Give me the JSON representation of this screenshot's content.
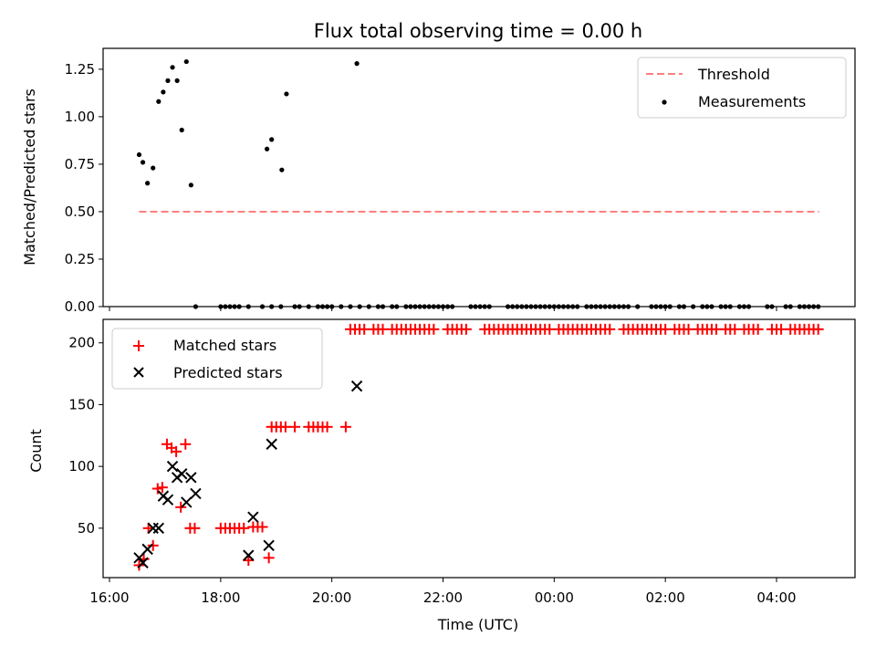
{
  "chart_data": [
    {
      "type": "scatter",
      "title": "Flux total observing time = 0.00 h",
      "ylabel": "Matched/Predicted stars",
      "ylim": [
        0,
        1.36
      ],
      "yticks": [
        "0.00",
        "0.25",
        "0.50",
        "0.75",
        "1.00",
        "1.25"
      ],
      "legend": {
        "placement": "top-right",
        "entries": [
          "Threshold",
          "Measurements"
        ]
      },
      "colors": {
        "threshold": "#ff7f7f",
        "measurements": "#000000"
      },
      "series": [
        {
          "name": "Threshold",
          "kind": "dashed-line",
          "points": [
            [
              "16:32",
              0.5
            ],
            [
              "04:46",
              0.5
            ]
          ]
        },
        {
          "name": "Measurements",
          "kind": "dot",
          "points": [
            [
              "16:32",
              0.8
            ],
            [
              "16:36",
              0.76
            ],
            [
              "16:41",
              0.65
            ],
            [
              "16:47",
              0.73
            ],
            [
              "16:53",
              1.08
            ],
            [
              "16:58",
              1.13
            ],
            [
              "17:03",
              1.19
            ],
            [
              "17:08",
              1.26
            ],
            [
              "17:13",
              1.19
            ],
            [
              "17:18",
              0.93
            ],
            [
              "17:23",
              1.29
            ],
            [
              "17:28",
              0.64
            ],
            [
              "18:50",
              0.83
            ],
            [
              "18:55",
              0.88
            ],
            [
              "19:06",
              0.72
            ],
            [
              "19:11",
              1.12
            ],
            [
              "20:27",
              1.28
            ],
            [
              "17:33",
              0
            ],
            [
              "18:00",
              0
            ],
            [
              "18:05",
              0
            ],
            [
              "18:10",
              0
            ],
            [
              "18:15",
              0
            ],
            [
              "18:20",
              0
            ],
            [
              "18:30",
              0
            ],
            [
              "18:45",
              0
            ],
            [
              "18:55",
              0
            ],
            [
              "19:05",
              0
            ],
            [
              "19:20",
              0
            ],
            [
              "19:25",
              0
            ],
            [
              "19:35",
              0
            ],
            [
              "19:45",
              0
            ],
            [
              "19:50",
              0
            ],
            [
              "19:55",
              0
            ],
            [
              "20:00",
              0
            ],
            [
              "20:10",
              0
            ],
            [
              "20:20",
              0
            ],
            [
              "20:30",
              0
            ],
            [
              "20:40",
              0
            ],
            [
              "20:50",
              0
            ],
            [
              "20:55",
              0
            ],
            [
              "21:05",
              0
            ],
            [
              "21:10",
              0
            ],
            [
              "21:20",
              0
            ],
            [
              "21:25",
              0
            ],
            [
              "21:30",
              0
            ],
            [
              "21:35",
              0
            ],
            [
              "21:40",
              0
            ],
            [
              "21:45",
              0
            ],
            [
              "21:50",
              0
            ],
            [
              "21:55",
              0
            ],
            [
              "22:00",
              0
            ],
            [
              "22:05",
              0
            ],
            [
              "22:10",
              0
            ],
            [
              "22:30",
              0
            ],
            [
              "22:35",
              0
            ],
            [
              "22:40",
              0
            ],
            [
              "22:45",
              0
            ],
            [
              "22:50",
              0
            ],
            [
              "23:10",
              0
            ],
            [
              "23:15",
              0
            ],
            [
              "23:20",
              0
            ],
            [
              "23:25",
              0
            ],
            [
              "23:30",
              0
            ],
            [
              "23:35",
              0
            ],
            [
              "23:40",
              0
            ],
            [
              "23:45",
              0
            ],
            [
              "23:50",
              0
            ],
            [
              "23:55",
              0
            ],
            [
              "00:00",
              0
            ],
            [
              "00:05",
              0
            ],
            [
              "00:10",
              0
            ],
            [
              "00:15",
              0
            ],
            [
              "00:20",
              0
            ],
            [
              "00:25",
              0
            ],
            [
              "00:35",
              0
            ],
            [
              "00:40",
              0
            ],
            [
              "00:45",
              0
            ],
            [
              "00:50",
              0
            ],
            [
              "00:55",
              0
            ],
            [
              "01:00",
              0
            ],
            [
              "01:05",
              0
            ],
            [
              "01:10",
              0
            ],
            [
              "01:15",
              0
            ],
            [
              "01:20",
              0
            ],
            [
              "01:30",
              0
            ],
            [
              "01:45",
              0
            ],
            [
              "01:50",
              0
            ],
            [
              "01:55",
              0
            ],
            [
              "02:00",
              0
            ],
            [
              "02:05",
              0
            ],
            [
              "02:15",
              0
            ],
            [
              "02:20",
              0
            ],
            [
              "02:30",
              0
            ],
            [
              "02:40",
              0
            ],
            [
              "02:45",
              0
            ],
            [
              "02:50",
              0
            ],
            [
              "03:00",
              0
            ],
            [
              "03:05",
              0
            ],
            [
              "03:10",
              0
            ],
            [
              "03:20",
              0
            ],
            [
              "03:25",
              0
            ],
            [
              "03:30",
              0
            ],
            [
              "03:50",
              0
            ],
            [
              "03:55",
              0
            ],
            [
              "04:10",
              0
            ],
            [
              "04:15",
              0
            ],
            [
              "04:25",
              0
            ],
            [
              "04:30",
              0
            ],
            [
              "04:35",
              0
            ],
            [
              "04:40",
              0
            ],
            [
              "04:45",
              0
            ]
          ]
        }
      ]
    },
    {
      "type": "scatter",
      "xlabel": "Time (UTC)",
      "ylabel": "Count",
      "ylim": [
        10,
        219
      ],
      "yticks": [
        "50",
        "100",
        "150",
        "200"
      ],
      "xticks": [
        "16:00",
        "18:00",
        "20:00",
        "22:00",
        "00:00",
        "02:00",
        "04:00"
      ],
      "legend": {
        "placement": "top-left",
        "entries": [
          "Matched stars",
          "Predicted stars"
        ]
      },
      "colors": {
        "matched": "#ff0000",
        "predicted": "#000000"
      },
      "series": [
        {
          "name": "Matched stars",
          "kind": "plus",
          "points": [
            [
              "16:32",
              20
            ],
            [
              "16:37",
              25
            ],
            [
              "16:42",
              50
            ],
            [
              "16:47",
              36
            ],
            [
              "16:52",
              82
            ],
            [
              "16:57",
              83
            ],
            [
              "17:02",
              118
            ],
            [
              "17:07",
              115
            ],
            [
              "17:12",
              112
            ],
            [
              "17:17",
              67
            ],
            [
              "17:22",
              118
            ],
            [
              "17:27",
              50
            ],
            [
              "17:32",
              50
            ],
            [
              "18:00",
              50
            ],
            [
              "18:05",
              50
            ],
            [
              "18:10",
              50
            ],
            [
              "18:15",
              50
            ],
            [
              "18:20",
              50
            ],
            [
              "18:25",
              50
            ],
            [
              "18:30",
              24
            ],
            [
              "18:35",
              51
            ],
            [
              "18:40",
              51
            ],
            [
              "18:45",
              51
            ],
            [
              "18:52",
              26
            ],
            [
              "18:55",
              132
            ],
            [
              "19:00",
              132
            ],
            [
              "19:05",
              132
            ],
            [
              "19:10",
              132
            ],
            [
              "19:20",
              132
            ],
            [
              "19:35",
              132
            ],
            [
              "19:40",
              132
            ],
            [
              "19:45",
              132
            ],
            [
              "19:50",
              132
            ],
            [
              "19:55",
              132
            ],
            [
              "20:15",
              132
            ],
            [
              "20:20",
              211
            ],
            [
              "20:25",
              211
            ],
            [
              "20:30",
              211
            ],
            [
              "20:35",
              211
            ],
            [
              "20:45",
              211
            ],
            [
              "20:50",
              211
            ],
            [
              "20:55",
              211
            ],
            [
              "21:05",
              211
            ],
            [
              "21:10",
              211
            ],
            [
              "21:15",
              211
            ],
            [
              "21:20",
              211
            ],
            [
              "21:25",
              211
            ],
            [
              "21:30",
              211
            ],
            [
              "21:35",
              211
            ],
            [
              "21:40",
              211
            ],
            [
              "21:45",
              211
            ],
            [
              "21:50",
              211
            ],
            [
              "22:05",
              211
            ],
            [
              "22:10",
              211
            ],
            [
              "22:15",
              211
            ],
            [
              "22:20",
              211
            ],
            [
              "22:25",
              211
            ],
            [
              "22:45",
              211
            ],
            [
              "22:50",
              211
            ],
            [
              "22:55",
              211
            ],
            [
              "23:00",
              211
            ],
            [
              "23:05",
              211
            ],
            [
              "23:10",
              211
            ],
            [
              "23:15",
              211
            ],
            [
              "23:20",
              211
            ],
            [
              "23:25",
              211
            ],
            [
              "23:30",
              211
            ],
            [
              "23:35",
              211
            ],
            [
              "23:40",
              211
            ],
            [
              "23:45",
              211
            ],
            [
              "23:50",
              211
            ],
            [
              "23:55",
              211
            ],
            [
              "00:05",
              211
            ],
            [
              "00:10",
              211
            ],
            [
              "00:15",
              211
            ],
            [
              "00:20",
              211
            ],
            [
              "00:25",
              211
            ],
            [
              "00:30",
              211
            ],
            [
              "00:35",
              211
            ],
            [
              "00:40",
              211
            ],
            [
              "00:45",
              211
            ],
            [
              "00:50",
              211
            ],
            [
              "00:55",
              211
            ],
            [
              "01:00",
              211
            ],
            [
              "01:15",
              211
            ],
            [
              "01:20",
              211
            ],
            [
              "01:25",
              211
            ],
            [
              "01:30",
              211
            ],
            [
              "01:35",
              211
            ],
            [
              "01:40",
              211
            ],
            [
              "01:45",
              211
            ],
            [
              "01:50",
              211
            ],
            [
              "01:55",
              211
            ],
            [
              "02:00",
              211
            ],
            [
              "02:10",
              211
            ],
            [
              "02:15",
              211
            ],
            [
              "02:20",
              211
            ],
            [
              "02:25",
              211
            ],
            [
              "02:35",
              211
            ],
            [
              "02:40",
              211
            ],
            [
              "02:45",
              211
            ],
            [
              "02:50",
              211
            ],
            [
              "02:55",
              211
            ],
            [
              "03:05",
              211
            ],
            [
              "03:10",
              211
            ],
            [
              "03:15",
              211
            ],
            [
              "03:25",
              211
            ],
            [
              "03:30",
              211
            ],
            [
              "03:35",
              211
            ],
            [
              "03:40",
              211
            ],
            [
              "03:55",
              211
            ],
            [
              "04:00",
              211
            ],
            [
              "04:05",
              211
            ],
            [
              "04:15",
              211
            ],
            [
              "04:20",
              211
            ],
            [
              "04:25",
              211
            ],
            [
              "04:30",
              211
            ],
            [
              "04:35",
              211
            ],
            [
              "04:40",
              211
            ],
            [
              "04:45",
              211
            ]
          ]
        },
        {
          "name": "Predicted stars",
          "kind": "cross",
          "points": [
            [
              "16:32",
              26
            ],
            [
              "16:36",
              22
            ],
            [
              "16:41",
              33
            ],
            [
              "16:47",
              50
            ],
            [
              "16:53",
              50
            ],
            [
              "16:58",
              76
            ],
            [
              "17:03",
              73
            ],
            [
              "17:08",
              100
            ],
            [
              "17:13",
              91
            ],
            [
              "17:18",
              94
            ],
            [
              "17:23",
              71
            ],
            [
              "17:28",
              91
            ],
            [
              "17:33",
              78
            ],
            [
              "18:30",
              28
            ],
            [
              "18:35",
              59
            ],
            [
              "18:52",
              36
            ],
            [
              "18:55",
              118
            ],
            [
              "20:27",
              165
            ]
          ]
        }
      ]
    }
  ]
}
